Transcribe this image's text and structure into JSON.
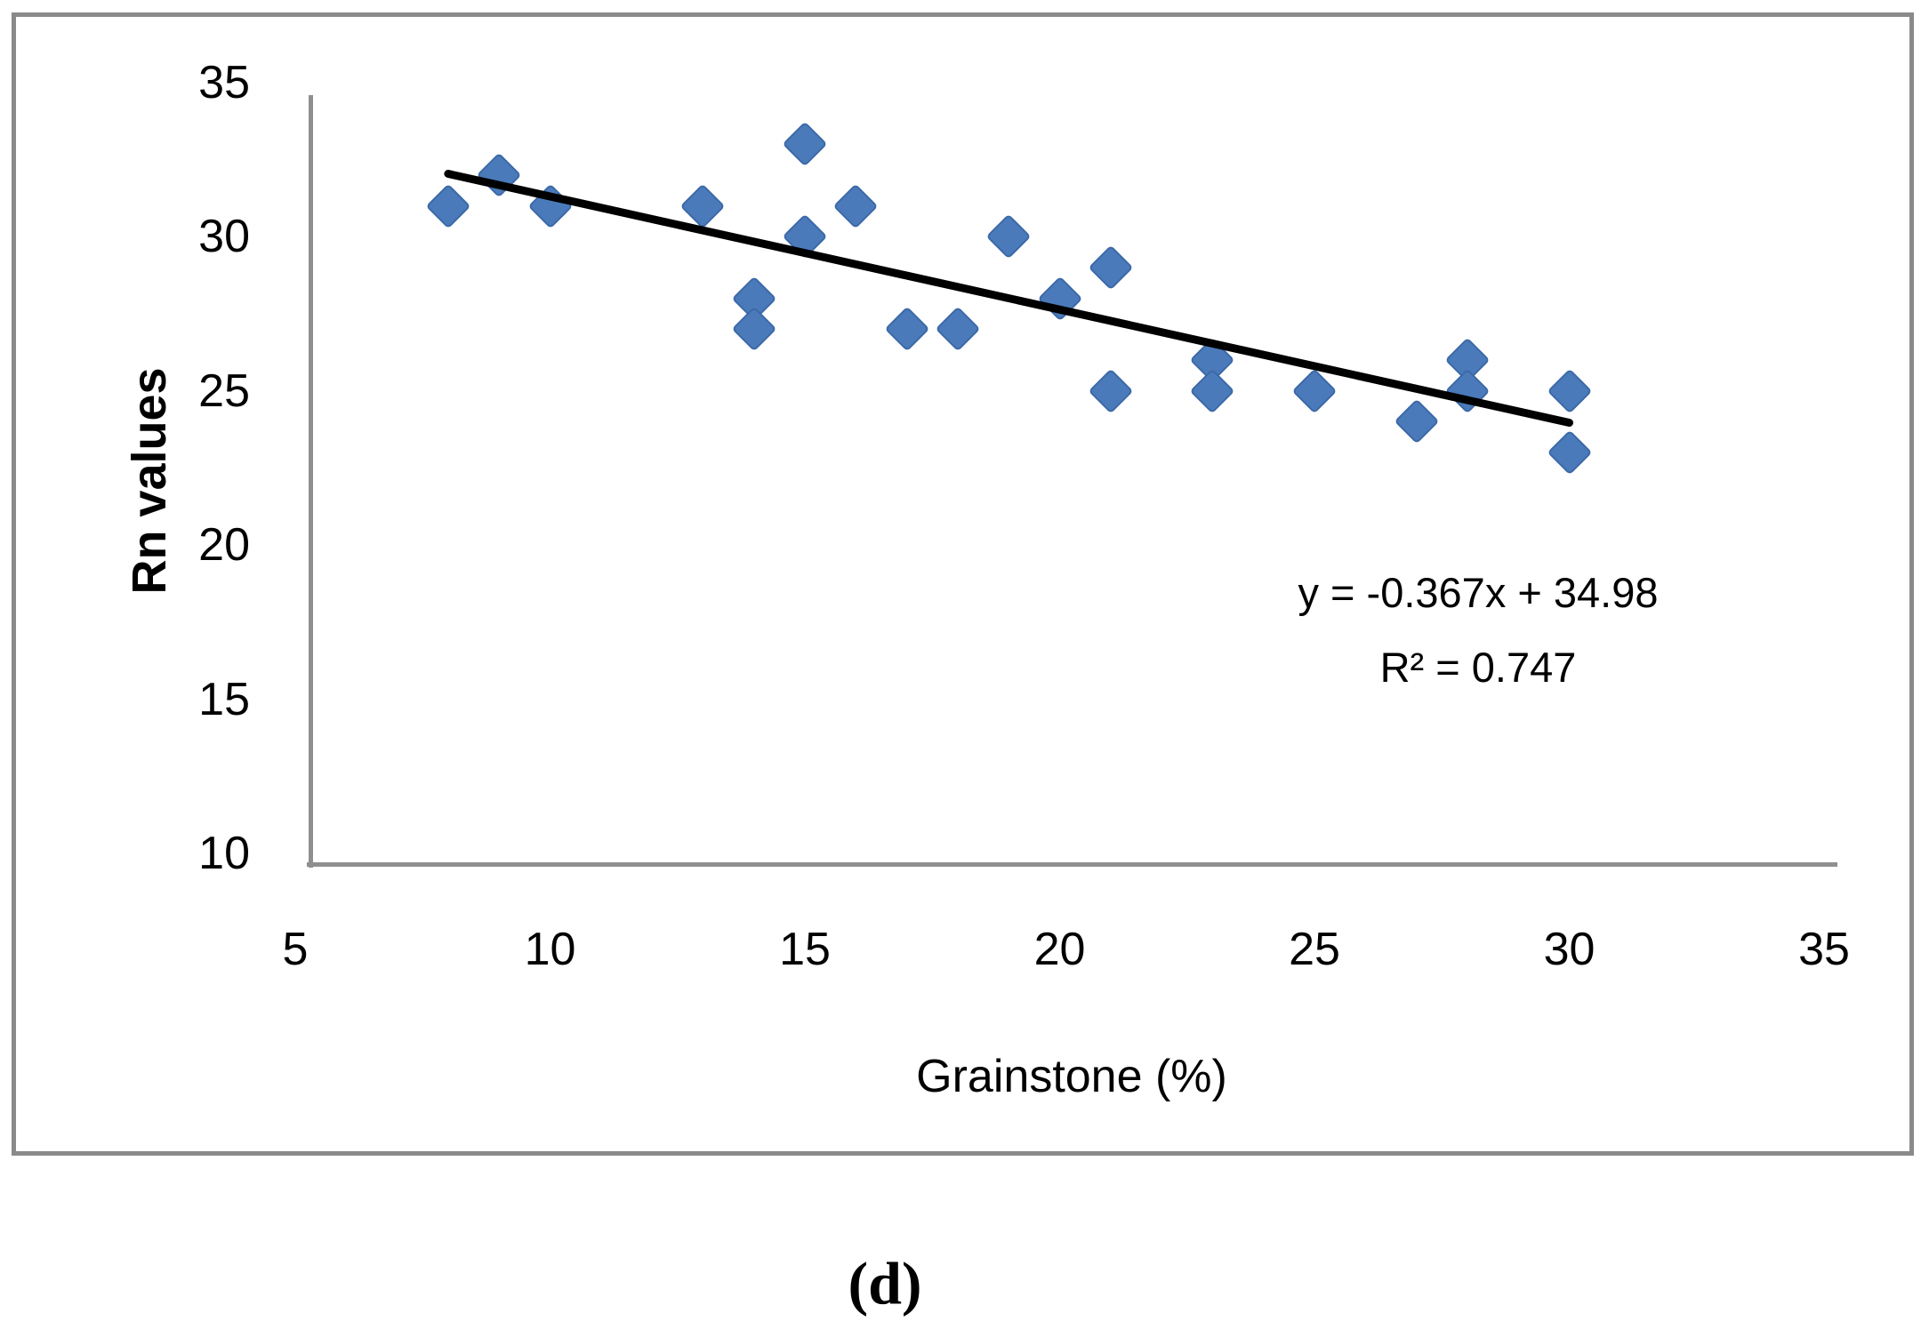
{
  "figure": {
    "caption": "(d)"
  },
  "colors": {
    "border": "#8a8a8a",
    "axis": "#8f8f8f",
    "marker": "#4a7aba",
    "marker_edge": "#3c69a7",
    "trendline": "#000000",
    "text": "#000000"
  },
  "chart_data": {
    "type": "scatter",
    "title": "",
    "xlabel": "Grainstone (%)",
    "ylabel": "Rn values",
    "xlim": [
      5,
      35
    ],
    "ylim": [
      10,
      35
    ],
    "x_ticks": [
      "5",
      "10",
      "15",
      "20",
      "25",
      "30",
      "35"
    ],
    "y_ticks": [
      "10",
      "15",
      "20",
      "25",
      "30",
      "35"
    ],
    "grid": false,
    "legend": false,
    "marker": "diamond",
    "points": [
      [
        8,
        31
      ],
      [
        9,
        32
      ],
      [
        10,
        31
      ],
      [
        13,
        31
      ],
      [
        14,
        28
      ],
      [
        14,
        27
      ],
      [
        15,
        33
      ],
      [
        15,
        30
      ],
      [
        16,
        31
      ],
      [
        17,
        27
      ],
      [
        18,
        27
      ],
      [
        19,
        30
      ],
      [
        20,
        28
      ],
      [
        21,
        29
      ],
      [
        21,
        25
      ],
      [
        23,
        26
      ],
      [
        23,
        25
      ],
      [
        25,
        25
      ],
      [
        27,
        24
      ],
      [
        28,
        26
      ],
      [
        28,
        25
      ],
      [
        30,
        25
      ],
      [
        30,
        23
      ]
    ],
    "trendline": {
      "slope": -0.367,
      "intercept": 34.98,
      "x_start": 8,
      "x_end": 30
    },
    "annotation": {
      "equation": "y = -0.367x + 34.98",
      "r_squared": "R² = 0.747"
    }
  }
}
